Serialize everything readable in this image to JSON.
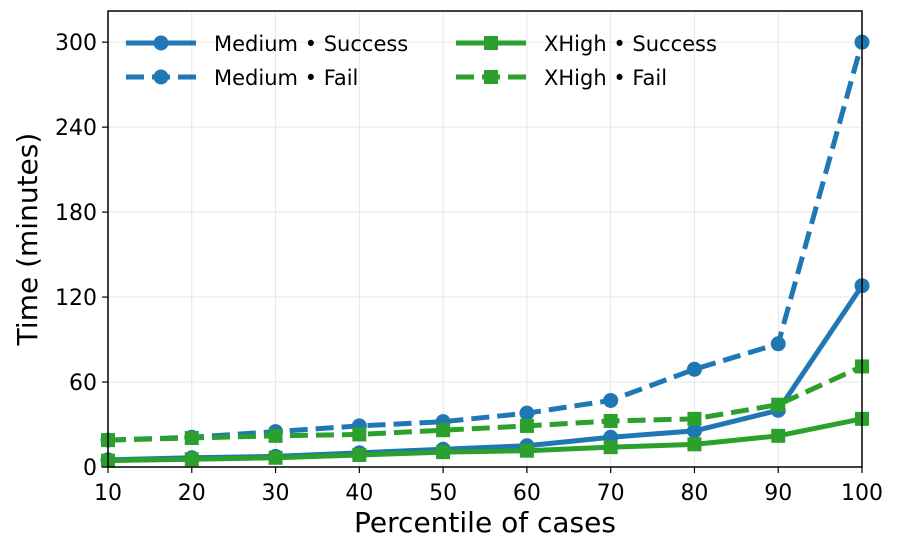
{
  "chart_data": {
    "type": "line",
    "title": "",
    "xlabel": "Percentile of cases",
    "ylabel": "Time (minutes)",
    "x": [
      10,
      20,
      30,
      40,
      50,
      60,
      70,
      80,
      90,
      100
    ],
    "xlim": [
      10,
      100
    ],
    "ylim": [
      0,
      322
    ],
    "xticks": [
      10,
      20,
      30,
      40,
      50,
      60,
      70,
      80,
      90,
      100
    ],
    "yticks": [
      0,
      60,
      120,
      180,
      240,
      300
    ],
    "grid": true,
    "legend_position": "top",
    "series": [
      {
        "name": "Medium • Success",
        "color": "#1f77b4",
        "linestyle": "solid",
        "marker": "circle",
        "values": [
          5,
          6.5,
          7.5,
          10,
          12.5,
          15,
          21,
          25.5,
          40,
          128
        ]
      },
      {
        "name": "Medium • Fail",
        "color": "#1f77b4",
        "linestyle": "dashed",
        "marker": "circle",
        "values": [
          19,
          21,
          25,
          29,
          32,
          38,
          47,
          69,
          87,
          300
        ]
      },
      {
        "name": "XHigh • Success",
        "color": "#2ca02c",
        "linestyle": "solid",
        "marker": "square",
        "values": [
          4.5,
          5.5,
          6.5,
          8.5,
          10.5,
          11.5,
          14,
          16,
          22,
          34
        ]
      },
      {
        "name": "XHigh • Fail",
        "color": "#2ca02c",
        "linestyle": "dashed",
        "marker": "square",
        "values": [
          19,
          20.5,
          22,
          23,
          26,
          29,
          32.5,
          34,
          44,
          71
        ]
      }
    ]
  }
}
